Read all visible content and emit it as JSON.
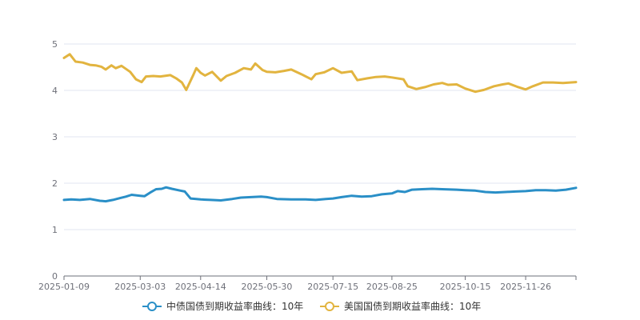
{
  "chart_data": {
    "type": "line",
    "title": "",
    "xlabel": "",
    "ylabel": "",
    "x_range": [
      "2025-01-09",
      "2025-12-31"
    ],
    "ylim": [
      0,
      5
    ],
    "yticks": [
      0,
      1,
      2,
      3,
      4,
      5
    ],
    "xtick_labels": [
      "2025-01-09",
      "2025-03-03",
      "2025-04-14",
      "2025-05-30",
      "2025-07-15",
      "2025-08-25",
      "2025-10-15",
      "2025-11-26"
    ],
    "grid": "horizontal",
    "legend_position": "bottom-center",
    "series": [
      {
        "name": "中债国债到期收益率曲线：10年",
        "color": "#2a8fc7",
        "points": [
          [
            "2025-01-09",
            1.64
          ],
          [
            "2025-01-14",
            1.65
          ],
          [
            "2025-01-20",
            1.64
          ],
          [
            "2025-01-27",
            1.66
          ],
          [
            "2025-02-03",
            1.62
          ],
          [
            "2025-02-07",
            1.61
          ],
          [
            "2025-02-12",
            1.64
          ],
          [
            "2025-02-17",
            1.68
          ],
          [
            "2025-02-21",
            1.71
          ],
          [
            "2025-02-25",
            1.75
          ],
          [
            "2025-03-03",
            1.73
          ],
          [
            "2025-03-06",
            1.72
          ],
          [
            "2025-03-10",
            1.8
          ],
          [
            "2025-03-14",
            1.87
          ],
          [
            "2025-03-18",
            1.88
          ],
          [
            "2025-03-21",
            1.91
          ],
          [
            "2025-03-25",
            1.88
          ],
          [
            "2025-03-31",
            1.84
          ],
          [
            "2025-04-03",
            1.82
          ],
          [
            "2025-04-07",
            1.67
          ],
          [
            "2025-04-11",
            1.66
          ],
          [
            "2025-04-14",
            1.65
          ],
          [
            "2025-04-21",
            1.64
          ],
          [
            "2025-04-28",
            1.63
          ],
          [
            "2025-05-06",
            1.66
          ],
          [
            "2025-05-12",
            1.69
          ],
          [
            "2025-05-19",
            1.7
          ],
          [
            "2025-05-26",
            1.71
          ],
          [
            "2025-05-30",
            1.7
          ],
          [
            "2025-06-06",
            1.66
          ],
          [
            "2025-06-16",
            1.65
          ],
          [
            "2025-06-26",
            1.65
          ],
          [
            "2025-07-03",
            1.64
          ],
          [
            "2025-07-10",
            1.66
          ],
          [
            "2025-07-15",
            1.67
          ],
          [
            "2025-07-21",
            1.7
          ],
          [
            "2025-07-28",
            1.73
          ],
          [
            "2025-08-04",
            1.71
          ],
          [
            "2025-08-11",
            1.72
          ],
          [
            "2025-08-18",
            1.76
          ],
          [
            "2025-08-25",
            1.78
          ],
          [
            "2025-08-29",
            1.83
          ],
          [
            "2025-09-03",
            1.81
          ],
          [
            "2025-09-08",
            1.86
          ],
          [
            "2025-09-15",
            1.87
          ],
          [
            "2025-09-22",
            1.88
          ],
          [
            "2025-09-29",
            1.87
          ],
          [
            "2025-10-09",
            1.86
          ],
          [
            "2025-10-15",
            1.85
          ],
          [
            "2025-10-22",
            1.84
          ],
          [
            "2025-10-29",
            1.81
          ],
          [
            "2025-11-05",
            1.8
          ],
          [
            "2025-11-12",
            1.81
          ],
          [
            "2025-11-19",
            1.82
          ],
          [
            "2025-11-26",
            1.83
          ],
          [
            "2025-12-03",
            1.85
          ],
          [
            "2025-12-10",
            1.85
          ],
          [
            "2025-12-17",
            1.84
          ],
          [
            "2025-12-24",
            1.86
          ],
          [
            "2025-12-31",
            1.9
          ]
        ]
      },
      {
        "name": "美国国债到期收益率曲线：10年",
        "color": "#e2b43f",
        "points": [
          [
            "2025-01-09",
            4.7
          ],
          [
            "2025-01-13",
            4.78
          ],
          [
            "2025-01-17",
            4.62
          ],
          [
            "2025-01-22",
            4.6
          ],
          [
            "2025-01-27",
            4.55
          ],
          [
            "2025-01-31",
            4.54
          ],
          [
            "2025-02-04",
            4.51
          ],
          [
            "2025-02-07",
            4.45
          ],
          [
            "2025-02-11",
            4.54
          ],
          [
            "2025-02-14",
            4.48
          ],
          [
            "2025-02-18",
            4.53
          ],
          [
            "2025-02-24",
            4.4
          ],
          [
            "2025-02-28",
            4.24
          ],
          [
            "2025-03-04",
            4.18
          ],
          [
            "2025-03-07",
            4.3
          ],
          [
            "2025-03-12",
            4.31
          ],
          [
            "2025-03-17",
            4.3
          ],
          [
            "2025-03-24",
            4.33
          ],
          [
            "2025-03-28",
            4.26
          ],
          [
            "2025-04-01",
            4.17
          ],
          [
            "2025-04-04",
            4.01
          ],
          [
            "2025-04-09",
            4.34
          ],
          [
            "2025-04-11",
            4.48
          ],
          [
            "2025-04-14",
            4.38
          ],
          [
            "2025-04-17",
            4.32
          ],
          [
            "2025-04-22",
            4.4
          ],
          [
            "2025-04-28",
            4.21
          ],
          [
            "2025-05-02",
            4.31
          ],
          [
            "2025-05-08",
            4.38
          ],
          [
            "2025-05-14",
            4.48
          ],
          [
            "2025-05-19",
            4.45
          ],
          [
            "2025-05-22",
            4.58
          ],
          [
            "2025-05-27",
            4.44
          ],
          [
            "2025-05-30",
            4.4
          ],
          [
            "2025-06-05",
            4.39
          ],
          [
            "2025-06-11",
            4.42
          ],
          [
            "2025-06-16",
            4.45
          ],
          [
            "2025-06-23",
            4.35
          ],
          [
            "2025-06-30",
            4.24
          ],
          [
            "2025-07-03",
            4.35
          ],
          [
            "2025-07-09",
            4.39
          ],
          [
            "2025-07-15",
            4.48
          ],
          [
            "2025-07-21",
            4.38
          ],
          [
            "2025-07-28",
            4.41
          ],
          [
            "2025-08-01",
            4.22
          ],
          [
            "2025-08-08",
            4.26
          ],
          [
            "2025-08-14",
            4.29
          ],
          [
            "2025-08-20",
            4.3
          ],
          [
            "2025-08-25",
            4.28
          ],
          [
            "2025-09-02",
            4.24
          ],
          [
            "2025-09-05",
            4.09
          ],
          [
            "2025-09-11",
            4.03
          ],
          [
            "2025-09-17",
            4.07
          ],
          [
            "2025-09-23",
            4.13
          ],
          [
            "2025-09-29",
            4.16
          ],
          [
            "2025-10-03",
            4.12
          ],
          [
            "2025-10-09",
            4.13
          ],
          [
            "2025-10-15",
            4.04
          ],
          [
            "2025-10-22",
            3.97
          ],
          [
            "2025-10-28",
            4.01
          ],
          [
            "2025-11-04",
            4.09
          ],
          [
            "2025-11-10",
            4.13
          ],
          [
            "2025-11-14",
            4.15
          ],
          [
            "2025-11-20",
            4.08
          ],
          [
            "2025-11-26",
            4.02
          ],
          [
            "2025-12-01",
            4.09
          ],
          [
            "2025-12-08",
            4.17
          ],
          [
            "2025-12-15",
            4.17
          ],
          [
            "2025-12-22",
            4.16
          ],
          [
            "2025-12-31",
            4.18
          ]
        ]
      }
    ]
  }
}
